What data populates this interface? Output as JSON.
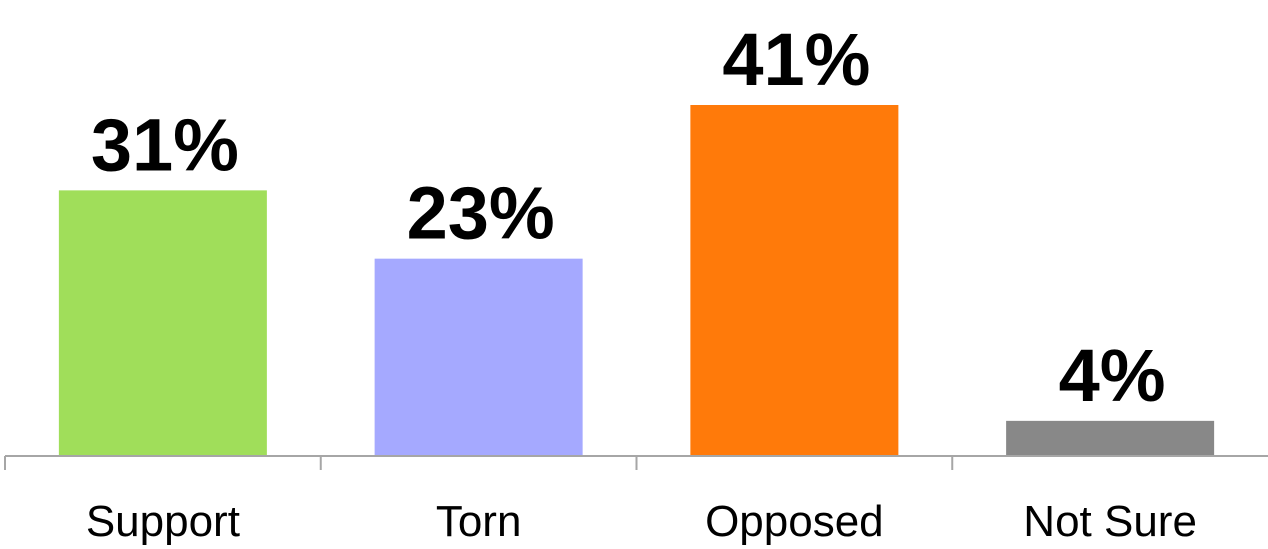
{
  "chart_data": {
    "type": "bar",
    "categories": [
      "Support",
      "Torn",
      "Opposed",
      "Not Sure"
    ],
    "values": [
      31,
      23,
      41,
      4
    ],
    "value_labels": [
      "31%",
      "23%",
      "41%",
      "4%"
    ],
    "colors": [
      "#a0de5a",
      "#a5a9ff",
      "#ff7a0a",
      "#888888"
    ]
  }
}
